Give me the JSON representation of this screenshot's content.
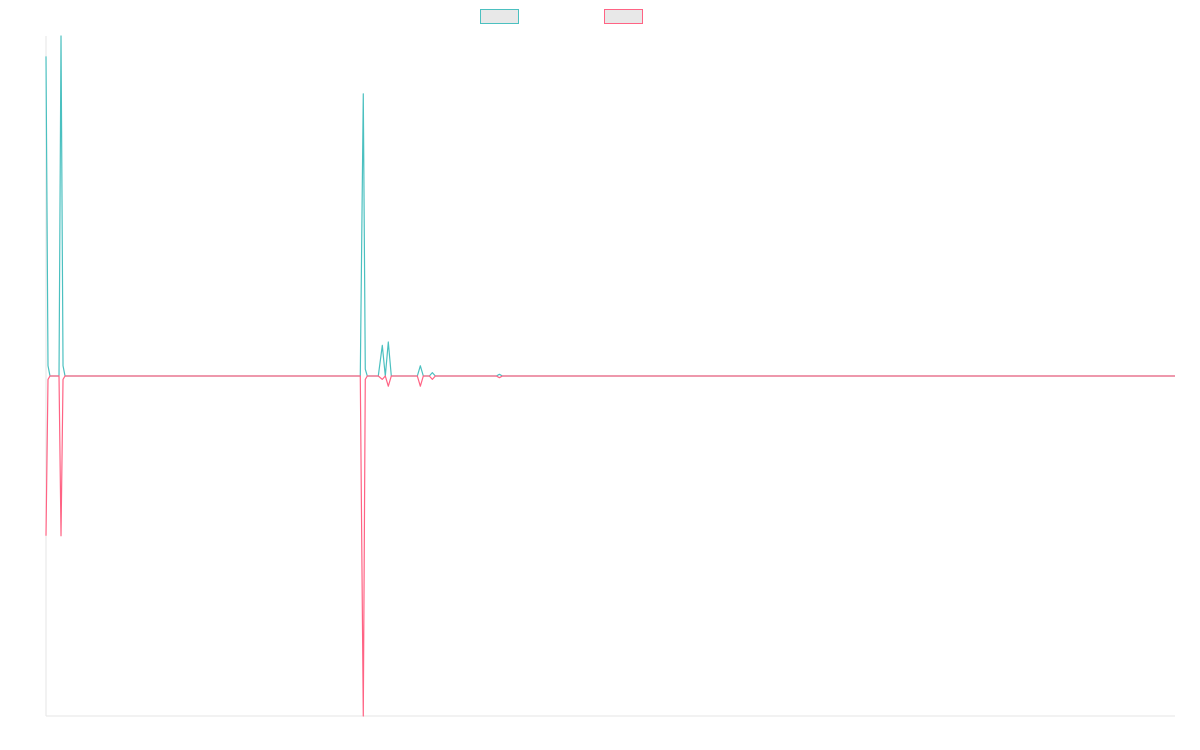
{
  "chart_data": {
    "type": "line",
    "title": "",
    "xlabel": "",
    "ylabel": "",
    "grid": false,
    "legend_position": "top-center",
    "x": [
      0,
      1,
      2,
      3,
      4,
      5,
      6,
      7,
      8,
      9,
      10,
      11,
      12,
      13,
      14,
      15,
      16,
      17,
      18,
      19,
      20,
      21,
      22,
      23,
      24,
      25,
      26,
      27,
      28,
      29,
      30,
      31,
      32,
      33,
      34,
      35,
      36,
      37,
      38,
      39,
      40,
      41,
      42,
      43,
      44,
      45,
      46,
      47,
      48,
      49,
      50,
      51,
      52,
      53,
      54,
      55,
      56,
      57,
      58,
      59,
      60,
      61,
      62,
      63,
      64,
      65,
      66,
      67,
      68,
      69,
      70,
      71,
      72,
      73,
      74,
      75,
      76,
      77,
      78,
      79,
      80,
      81,
      82,
      83,
      84,
      85,
      86,
      87,
      88,
      89,
      90,
      91,
      92,
      93,
      94,
      95,
      96,
      97,
      98,
      99,
      100,
      101,
      102,
      103,
      104,
      105,
      106,
      107,
      108,
      109,
      110,
      111,
      112,
      113,
      114,
      115,
      116,
      117,
      118,
      119,
      120,
      121,
      122,
      123,
      124,
      125,
      126,
      127,
      128,
      129,
      130,
      131,
      132,
      133,
      134,
      135,
      136,
      137,
      138,
      139,
      140,
      141,
      142,
      143,
      144,
      145,
      146,
      147,
      148,
      149,
      150,
      151,
      152,
      153,
      154,
      155,
      156,
      157,
      158,
      159,
      160,
      161,
      162,
      163,
      164,
      165,
      166,
      167,
      168,
      169,
      170,
      171,
      172,
      173,
      174,
      175,
      176,
      177,
      178,
      179,
      180,
      181,
      182,
      183,
      184,
      185,
      186,
      187,
      188,
      189,
      190,
      191,
      192,
      193,
      194,
      195,
      196,
      197,
      198,
      199,
      200,
      201,
      202,
      203,
      204,
      205,
      206,
      207,
      208,
      209,
      210,
      211,
      212,
      213,
      214,
      215,
      216,
      217,
      218,
      219,
      220,
      221,
      222,
      223,
      224,
      225,
      226,
      227,
      228,
      229,
      230,
      231,
      232,
      233,
      234,
      235,
      236,
      237,
      238,
      239,
      240,
      241,
      242,
      243,
      244,
      245,
      246,
      247,
      248,
      249,
      250,
      251,
      252,
      253,
      254,
      255,
      256,
      257,
      258,
      259,
      260,
      261,
      262,
      263,
      264,
      265,
      266,
      267,
      268,
      269,
      270,
      271,
      272,
      273,
      274,
      275,
      276,
      277,
      278,
      279,
      280,
      281,
      282,
      283,
      284,
      285,
      286,
      287,
      288,
      289,
      290,
      291,
      292,
      293,
      294,
      295,
      296,
      297,
      298,
      299,
      300,
      301,
      302,
      303,
      304,
      305,
      306,
      307,
      308,
      309,
      310,
      311,
      312,
      313,
      314,
      315,
      316,
      317,
      318,
      319,
      320,
      321,
      322,
      323,
      324,
      325,
      326,
      327,
      328,
      329,
      330,
      331,
      332,
      333,
      334,
      335,
      336,
      337,
      338,
      339,
      340,
      341,
      342,
      343,
      344,
      345,
      346,
      347,
      348,
      349,
      350,
      351,
      352,
      353,
      354,
      355,
      356,
      357,
      358,
      359,
      360,
      361,
      362,
      363,
      364,
      365,
      366,
      367,
      368,
      369,
      370,
      371,
      372,
      373,
      374,
      375,
      376,
      377,
      378,
      379,
      380,
      381,
      382,
      383,
      384,
      385,
      386,
      387,
      388,
      389,
      390,
      391,
      392,
      393,
      394,
      395,
      396,
      397,
      398,
      399,
      400,
      401,
      402,
      403,
      404,
      405,
      406,
      407,
      408,
      409,
      410,
      411,
      412,
      413,
      414,
      415,
      416,
      417,
      418,
      419,
      420,
      421,
      422,
      423,
      424,
      425,
      426,
      427,
      428,
      429,
      430,
      431,
      432,
      433,
      434,
      435,
      436,
      437,
      438,
      439,
      440,
      441,
      442,
      443,
      444,
      445,
      446,
      447,
      448,
      449,
      450,
      451,
      452,
      453,
      454,
      455,
      456,
      457,
      458,
      459,
      460,
      461,
      462,
      463,
      464,
      465,
      466,
      467,
      468,
      469,
      470,
      471,
      472,
      473,
      474,
      475,
      476,
      477,
      478,
      479,
      480,
      481,
      482,
      483,
      484,
      485,
      486,
      487,
      488,
      489,
      490,
      491,
      492,
      493,
      494,
      495,
      496,
      497,
      498,
      499,
      500,
      501,
      502,
      503,
      504,
      505,
      506,
      507,
      508,
      509,
      510,
      511,
      512,
      513,
      514,
      515,
      516,
      517,
      518,
      519,
      520,
      521,
      522,
      523,
      524,
      525,
      526,
      527,
      528,
      529,
      530,
      531,
      532,
      533,
      534,
      535,
      536,
      537,
      538,
      539,
      540,
      541,
      542,
      543,
      544,
      545,
      546,
      547,
      548,
      549,
      550,
      551,
      552,
      553,
      554,
      555,
      556,
      557,
      558,
      559,
      560,
      561,
      562,
      563,
      564,
      565,
      566,
      567,
      568,
      569,
      570,
      571,
      572,
      573,
      574,
      575,
      576,
      577,
      578,
      579,
      580,
      581,
      582,
      583,
      584,
      585,
      586,
      587,
      588,
      589,
      590,
      591,
      592,
      593,
      594,
      595,
      596,
      597,
      598,
      599,
      600,
      601,
      602,
      603,
      604,
      605,
      606,
      607,
      608,
      609,
      610,
      611,
      612,
      613,
      614,
      615,
      616,
      617,
      618,
      619,
      620,
      621,
      622,
      623,
      624,
      625,
      626,
      627,
      628,
      629,
      630,
      631,
      632,
      633,
      634,
      635,
      636,
      637,
      638,
      639,
      640,
      641,
      642,
      643,
      644,
      645,
      646,
      647,
      648,
      649,
      650,
      651,
      652,
      653,
      654,
      655,
      656,
      657,
      658,
      659,
      660,
      661,
      662,
      663,
      664,
      665,
      666,
      667,
      668,
      669,
      670,
      671,
      672,
      673,
      674,
      675,
      676,
      677,
      678,
      679,
      680,
      681,
      682,
      683,
      684,
      685,
      686,
      687,
      688,
      689,
      690,
      691,
      692,
      693,
      694,
      695,
      696,
      697,
      698,
      699,
      700,
      701,
      702,
      703,
      704,
      705,
      706,
      707,
      708,
      709,
      710,
      711,
      712,
      713,
      714,
      715,
      716,
      717,
      718,
      719,
      720,
      721,
      722,
      723,
      724,
      725,
      726,
      727,
      728,
      729,
      730,
      731,
      732,
      733,
      734,
      735,
      736,
      737,
      738,
      739,
      740,
      741,
      742,
      743,
      744,
      745,
      746,
      747,
      748,
      749,
      750,
      751,
      752,
      753,
      754,
      755,
      756,
      757,
      758,
      759,
      760,
      761,
      762,
      763,
      764,
      765,
      766,
      767,
      768,
      769,
      770,
      771,
      772,
      773,
      774,
      775,
      776,
      777,
      778,
      779,
      780,
      781,
      782,
      783,
      784,
      785,
      786,
      787,
      788,
      789,
      790,
      791,
      792,
      793,
      794,
      795,
      796,
      797,
      798,
      799,
      800,
      801,
      802,
      803,
      804,
      805,
      806,
      807,
      808,
      809,
      810,
      811,
      812,
      813,
      814,
      815,
      816,
      817,
      818,
      819,
      820,
      821,
      822,
      823,
      824,
      825,
      826,
      827,
      828,
      829,
      830,
      831,
      832,
      833,
      834,
      835,
      836,
      837,
      838,
      839,
      840,
      841,
      842,
      843,
      844,
      845,
      846,
      847,
      848,
      849,
      850,
      851,
      852,
      853,
      854,
      855,
      856,
      857,
      858,
      859,
      860,
      861,
      862,
      863,
      864,
      865,
      866,
      867,
      868,
      869,
      870,
      871,
      872,
      873,
      874,
      875,
      876,
      877,
      878,
      879,
      880,
      881,
      882,
      883,
      884,
      885,
      886,
      887,
      888,
      889,
      890,
      891,
      892,
      893,
      894,
      895,
      896,
      897,
      898,
      899,
      900,
      901,
      902,
      903,
      904,
      905,
      906,
      907,
      908,
      909,
      910,
      911,
      912,
      913,
      914,
      915,
      916,
      917,
      918,
      919,
      920,
      921,
      922,
      923,
      924,
      925,
      926,
      927,
      928,
      929,
      930,
      931,
      932,
      933,
      934,
      935,
      936,
      937,
      938,
      939,
      940,
      941,
      942,
      943,
      944,
      945,
      946,
      947,
      948,
      949,
      950,
      951,
      952,
      953,
      954,
      955,
      956,
      957,
      958,
      959,
      960,
      961,
      962,
      963,
      964,
      965,
      966,
      967,
      968,
      969,
      970,
      971,
      972,
      973,
      974,
      975,
      976,
      977,
      978,
      979,
      980,
      981,
      982,
      983,
      984,
      985,
      986,
      987,
      988,
      989,
      990,
      991,
      992,
      993,
      994,
      995,
      996,
      997,
      998,
      999,
      1000,
      1001,
      1002,
      1003,
      1004,
      1005,
      1006,
      1007,
      1008,
      1009,
      1010,
      1011,
      1012,
      1013,
      1014,
      1015,
      1016,
      1017,
      1018,
      1019,
      1020,
      1021,
      1022,
      1023,
      1024,
      1025,
      1026,
      1027,
      1028,
      1029,
      1030,
      1031,
      1032,
      1033,
      1034,
      1035,
      1036,
      1037,
      1038,
      1039,
      1040,
      1041,
      1042,
      1043,
      1044,
      1045,
      1046,
      1047,
      1048,
      1049,
      1050,
      1051,
      1052,
      1053,
      1054,
      1055,
      1056,
      1057,
      1058,
      1059,
      1060,
      1061,
      1062,
      1063,
      1064,
      1065,
      1066,
      1067,
      1068,
      1069,
      1070,
      1071,
      1072,
      1073,
      1074,
      1075,
      1076,
      1077,
      1078,
      1079,
      1080,
      1081,
      1082,
      1083,
      1084,
      1085,
      1086,
      1087,
      1088,
      1089,
      1090,
      1091,
      1092,
      1093,
      1094,
      1095,
      1096,
      1097,
      1098,
      1099,
      1100,
      1101,
      1102,
      1103,
      1104,
      1105,
      1106,
      1107,
      1108,
      1109,
      1110,
      1111,
      1112,
      1113,
      1114,
      1115,
      1116,
      1117,
      1118,
      1119,
      1120,
      1121,
      1122,
      1123,
      1124,
      1125,
      1126,
      1127,
      1128
    ],
    "ylim": [
      -1,
      1
    ],
    "xlim": [
      0,
      1128
    ],
    "series": [
      {
        "name": "",
        "color": "#4bc0c0",
        "points": [
          [
            0,
            0.94
          ],
          [
            2,
            0.03
          ],
          [
            4,
            0
          ],
          [
            13,
            0
          ],
          [
            15,
            1.0
          ],
          [
            17,
            0.03
          ],
          [
            19,
            0
          ],
          [
            314,
            0
          ],
          [
            317,
            0.83
          ],
          [
            319,
            0.02
          ],
          [
            321,
            0
          ],
          [
            332,
            0
          ],
          [
            336,
            0.09
          ],
          [
            339,
            0
          ],
          [
            342,
            0.1
          ],
          [
            345,
            0
          ],
          [
            371,
            0
          ],
          [
            374,
            0.03
          ],
          [
            377,
            0
          ],
          [
            383,
            0
          ],
          [
            386,
            0.01
          ],
          [
            389,
            0
          ],
          [
            450,
            0
          ],
          [
            453,
            0.005
          ],
          [
            456,
            0
          ],
          [
            1128,
            0
          ]
        ]
      },
      {
        "name": "",
        "color": "#ff6384",
        "points": [
          [
            0,
            -0.47
          ],
          [
            2,
            -0.01
          ],
          [
            4,
            0
          ],
          [
            13,
            0
          ],
          [
            15,
            -0.47
          ],
          [
            17,
            -0.01
          ],
          [
            19,
            0
          ],
          [
            314,
            0
          ],
          [
            317,
            -1.0
          ],
          [
            319,
            -0.01
          ],
          [
            321,
            0
          ],
          [
            332,
            0
          ],
          [
            336,
            -0.01
          ],
          [
            339,
            0
          ],
          [
            342,
            -0.03
          ],
          [
            345,
            0
          ],
          [
            371,
            0
          ],
          [
            374,
            -0.03
          ],
          [
            377,
            0
          ],
          [
            383,
            0
          ],
          [
            386,
            -0.01
          ],
          [
            389,
            0
          ],
          [
            450,
            0
          ],
          [
            453,
            -0.005
          ],
          [
            456,
            0
          ],
          [
            1128,
            0
          ]
        ]
      }
    ]
  }
}
